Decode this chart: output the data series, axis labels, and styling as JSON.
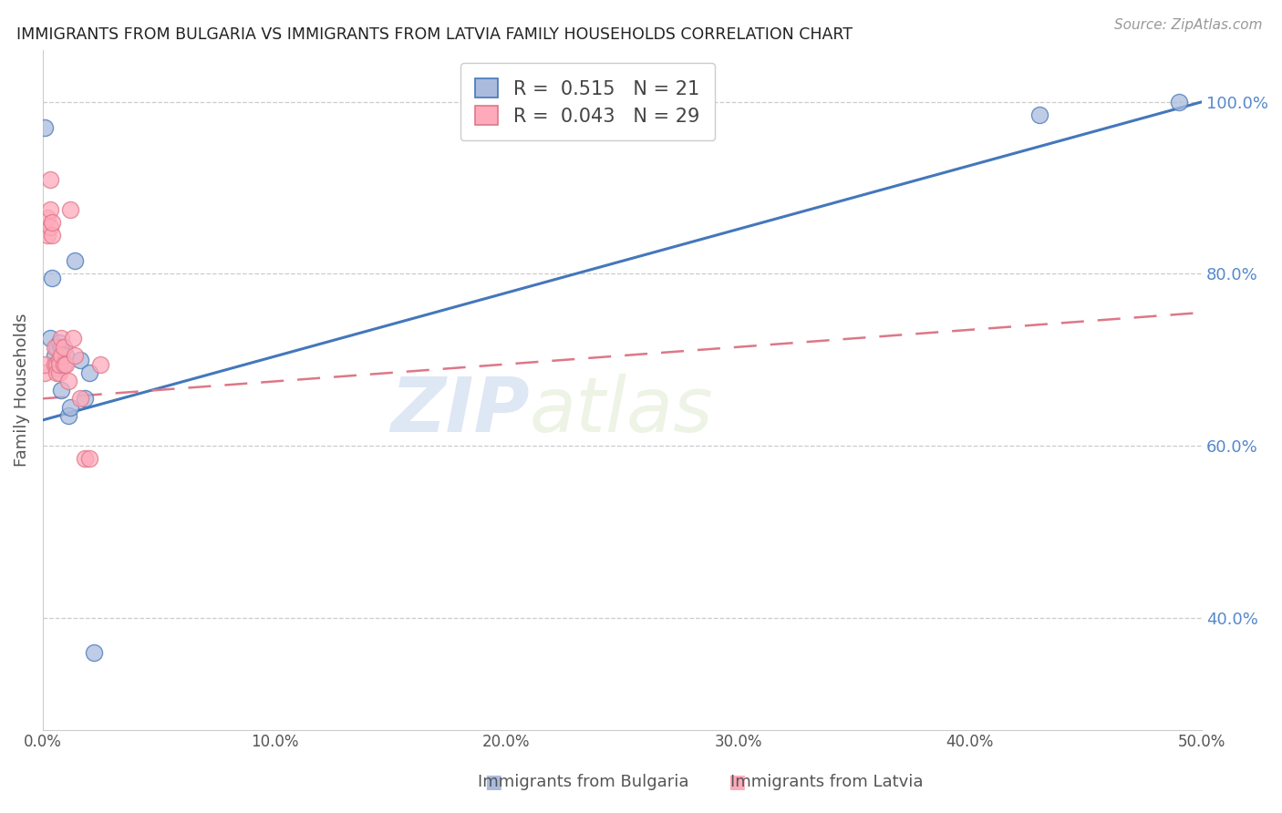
{
  "title": "IMMIGRANTS FROM BULGARIA VS IMMIGRANTS FROM LATVIA FAMILY HOUSEHOLDS CORRELATION CHART",
  "source": "Source: ZipAtlas.com",
  "ylabel": "Family Households",
  "legend_labels": [
    "Immigrants from Bulgaria",
    "Immigrants from Latvia"
  ],
  "bulgaria_R": 0.515,
  "bulgaria_N": 21,
  "latvia_R": 0.043,
  "latvia_N": 29,
  "xlim": [
    0.0,
    0.5
  ],
  "ylim": [
    0.27,
    1.06
  ],
  "xticks": [
    0.0,
    0.1,
    0.2,
    0.3,
    0.4,
    0.5
  ],
  "yticks_right": [
    0.4,
    0.6,
    0.8,
    1.0
  ],
  "background_color": "#ffffff",
  "blue_color": "#aabbdd",
  "pink_color": "#ffaabb",
  "line_blue": "#4477bb",
  "line_pink": "#dd7788",
  "watermark_top": "ZIP",
  "watermark_bot": "atlas",
  "bulgaria_x": [
    0.001,
    0.003,
    0.004,
    0.005,
    0.006,
    0.006,
    0.007,
    0.007,
    0.008,
    0.008,
    0.009,
    0.01,
    0.011,
    0.012,
    0.014,
    0.016,
    0.018,
    0.02,
    0.022,
    0.43,
    0.49
  ],
  "bulgaria_y": [
    0.97,
    0.725,
    0.795,
    0.705,
    0.715,
    0.69,
    0.72,
    0.695,
    0.715,
    0.665,
    0.695,
    0.705,
    0.635,
    0.645,
    0.815,
    0.7,
    0.655,
    0.685,
    0.36,
    0.985,
    1.0
  ],
  "latvia_x": [
    0.001,
    0.001,
    0.002,
    0.002,
    0.003,
    0.003,
    0.003,
    0.004,
    0.004,
    0.005,
    0.005,
    0.006,
    0.006,
    0.007,
    0.007,
    0.007,
    0.008,
    0.008,
    0.009,
    0.009,
    0.01,
    0.011,
    0.012,
    0.013,
    0.014,
    0.016,
    0.018,
    0.02,
    0.025
  ],
  "latvia_y": [
    0.685,
    0.695,
    0.845,
    0.865,
    0.855,
    0.875,
    0.91,
    0.845,
    0.86,
    0.715,
    0.695,
    0.695,
    0.685,
    0.685,
    0.7,
    0.695,
    0.725,
    0.705,
    0.695,
    0.715,
    0.695,
    0.675,
    0.875,
    0.725,
    0.705,
    0.655,
    0.585,
    0.585,
    0.695
  ],
  "latvia_line_x": [
    0.0,
    0.5
  ],
  "latvia_line_y": [
    0.655,
    0.755
  ],
  "bulgaria_line_x": [
    0.0,
    0.5
  ],
  "bulgaria_line_y": [
    0.63,
    1.0
  ]
}
